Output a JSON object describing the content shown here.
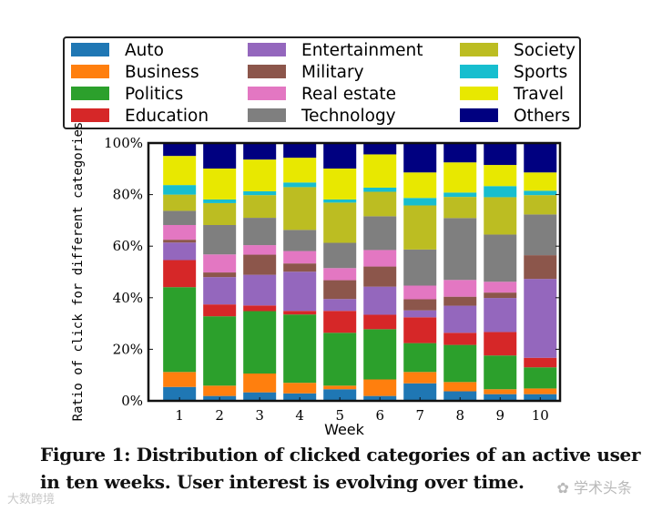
{
  "chart_data": {
    "type": "bar",
    "stacked": true,
    "title": "",
    "xlabel": "Week",
    "ylabel": "Ratio of click for different categories",
    "ylim": [
      0,
      100
    ],
    "yticks": [
      "0%",
      "20%",
      "40%",
      "60%",
      "80%",
      "100%"
    ],
    "categories": [
      "1",
      "2",
      "3",
      "4",
      "5",
      "6",
      "7",
      "8",
      "9",
      "10"
    ],
    "legend_position": "top",
    "series": [
      {
        "name": "Auto",
        "color": "#1f77b4",
        "values": [
          5.4,
          1.9,
          3.3,
          2.9,
          4.5,
          1.9,
          6.8,
          3.7,
          2.6,
          2.6
        ]
      },
      {
        "name": "Business",
        "color": "#ff7f0e",
        "values": [
          5.8,
          4.0,
          7.3,
          4.1,
          1.4,
          6.4,
          4.4,
          3.6,
          1.9,
          2.2
        ]
      },
      {
        "name": "Politics",
        "color": "#2ca02c",
        "values": [
          32.9,
          26.9,
          24.2,
          26.5,
          20.5,
          19.5,
          11.2,
          14.4,
          13.1,
          8.2
        ]
      },
      {
        "name": "Education",
        "color": "#d62728",
        "values": [
          10.5,
          4.6,
          2.2,
          1.4,
          8.5,
          5.6,
          10.0,
          4.7,
          9.1,
          3.7
        ]
      },
      {
        "name": "Entertainment",
        "color": "#9467bd",
        "values": [
          6.8,
          10.6,
          11.9,
          15.2,
          4.6,
          10.9,
          2.7,
          10.5,
          13.2,
          30.6
        ]
      },
      {
        "name": "Military",
        "color": "#8c564b",
        "values": [
          1.1,
          1.8,
          7.8,
          3.2,
          7.3,
          7.8,
          4.3,
          3.5,
          2.1,
          9.2
        ]
      },
      {
        "name": "Real estate",
        "color": "#e377c2",
        "values": [
          5.7,
          7.0,
          3.7,
          4.8,
          4.7,
          6.4,
          5.3,
          6.5,
          4.2,
          0
        ]
      },
      {
        "name": "Technology",
        "color": "#7f7f7f",
        "values": [
          5.5,
          11.4,
          10.6,
          8.2,
          9.8,
          13.1,
          14.0,
          24.0,
          18.3,
          15.8
        ]
      },
      {
        "name": "Society",
        "color": "#bcbd22",
        "values": [
          6.3,
          8.5,
          8.8,
          16.6,
          15.6,
          9.5,
          17.1,
          8.2,
          14.5,
          7.5
        ]
      },
      {
        "name": "Sports",
        "color": "#17becf",
        "values": [
          3.7,
          1.4,
          1.5,
          1.8,
          1.2,
          1.6,
          2.9,
          1.7,
          4.3,
          1.7
        ]
      },
      {
        "name": "Travel",
        "color": "#e8e800",
        "values": [
          11.3,
          12.0,
          12.3,
          9.6,
          12.0,
          12.9,
          9.9,
          11.7,
          8.2,
          7.1
        ]
      },
      {
        "name": "Others",
        "color": "#000080",
        "values": [
          5.0,
          9.9,
          6.4,
          5.7,
          9.9,
          4.4,
          11.4,
          7.5,
          8.5,
          11.4
        ]
      }
    ]
  },
  "caption": {
    "line1": "Figure 1: Distribution of clicked categories of an active user",
    "line2": "in ten weeks. User interest is evolving over time."
  },
  "watermarks": {
    "left": "大数跨境",
    "right": "学术头条"
  }
}
